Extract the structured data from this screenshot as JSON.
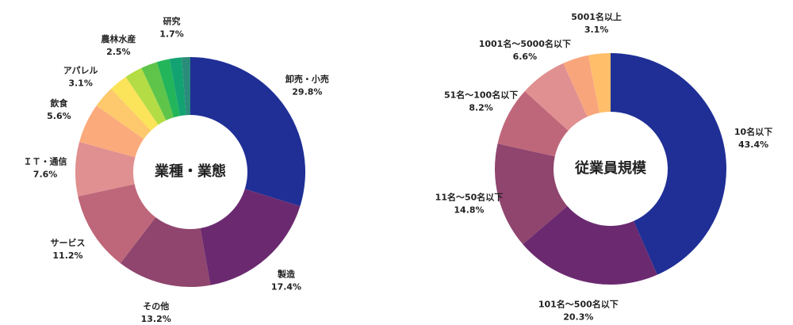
{
  "chart_data": [
    {
      "type": "donut",
      "title": "業種・業態",
      "categories": [
        "卸売・小売",
        "製造",
        "その他",
        "サービス",
        "ＩＴ・通信",
        "飲食",
        "アパレル",
        null,
        "農林水産",
        null,
        null,
        "研究",
        null
      ],
      "values": [
        29.8,
        17.4,
        13.2,
        11.2,
        7.6,
        5.6,
        3.1,
        2.6,
        2.5,
        2.3,
        1.8,
        1.7,
        1.2
      ],
      "value_labels": [
        "29.8%",
        "17.4%",
        "13.2%",
        "11.2%",
        "7.6%",
        "5.6%",
        "3.1%",
        null,
        "2.5%",
        null,
        null,
        "1.7%",
        null
      ],
      "colors": [
        "#1f2f96",
        "#6b2a70",
        "#8f456e",
        "#bf677a",
        "#e09090",
        "#fbaa7b",
        "#fdc96c",
        "#fbe35a",
        "#b4dc45",
        "#5ec54a",
        "#23b55a",
        "#13a272",
        "#2a8c7a"
      ]
    },
    {
      "type": "donut",
      "title": "従業員規模",
      "categories": [
        "10名以下",
        "101名～500名以下",
        "11名～50名以下",
        "51名～100名以下",
        "1001名～5000名以下",
        null,
        "5001名以上"
      ],
      "values": [
        43.4,
        20.3,
        14.8,
        8.2,
        6.6,
        3.6,
        3.1
      ],
      "value_labels": [
        "43.4%",
        "20.3%",
        "14.8%",
        "8.2%",
        "6.6%",
        null,
        "3.1%"
      ],
      "colors": [
        "#1f2f96",
        "#6b2a70",
        "#8f456e",
        "#bf677a",
        "#e09090",
        "#f9a57c",
        "#ffbe6a"
      ]
    }
  ]
}
